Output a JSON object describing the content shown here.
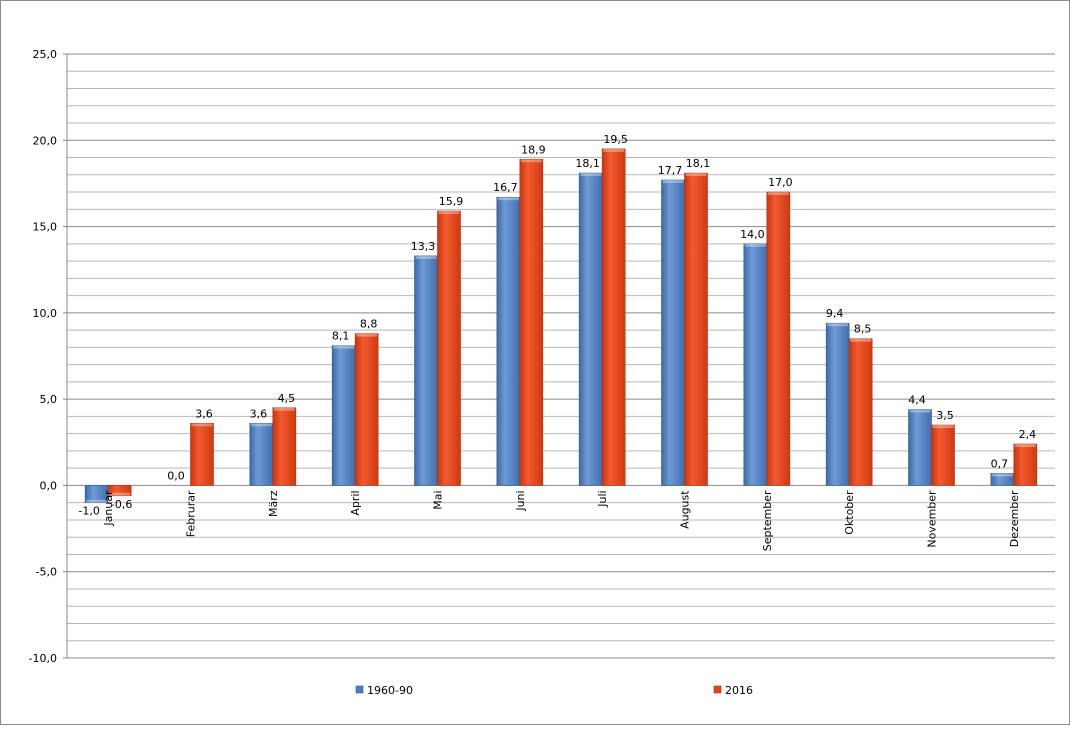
{
  "chart_data": {
    "type": "bar",
    "categories": [
      "Januar",
      "Februrar",
      "März",
      "April",
      "Mai",
      "Juni",
      "Juli",
      "August",
      "September",
      "Oktober",
      "November",
      "Dezember"
    ],
    "series": [
      {
        "name": "1960-90",
        "color": "#4a7ebb",
        "values": [
          -1.0,
          0.0,
          3.6,
          8.1,
          13.3,
          16.7,
          18.1,
          17.7,
          14.0,
          9.4,
          4.4,
          0.7
        ],
        "labels": [
          "-1,0",
          "0,0",
          "3,6",
          "8,1",
          "13,3",
          "16,7",
          "18,1",
          "17,7",
          "14,0",
          "9,4",
          "4,4",
          "0,7"
        ]
      },
      {
        "name": "2016",
        "color": "#e8421a",
        "values": [
          -0.6,
          3.6,
          4.5,
          8.8,
          15.9,
          18.9,
          19.5,
          18.1,
          17.0,
          8.5,
          3.5,
          2.4
        ],
        "labels": [
          "-0,6",
          "3,6",
          "4,5",
          "8,8",
          "15,9",
          "18,9",
          "19,5",
          "18,1",
          "17,0",
          "8,5",
          "3,5",
          "2,4"
        ]
      }
    ],
    "y_ticks": [
      25,
      20,
      15,
      10,
      5,
      0,
      -5,
      -10
    ],
    "y_tick_labels": [
      "25,0",
      "20,0",
      "15,0",
      "10,0",
      "5,0",
      "0,0",
      "-5,0",
      "-10,0"
    ],
    "ylim": [
      -10,
      25
    ],
    "minor_grid_step": 1,
    "grid": true,
    "legend_position": "bottom",
    "title": "",
    "xlabel": "",
    "ylabel": ""
  }
}
